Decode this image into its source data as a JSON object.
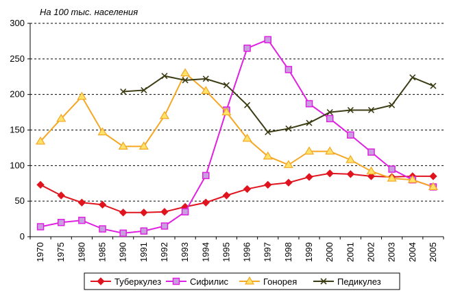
{
  "chart_data": {
    "type": "line",
    "title": "На 100 тыс. населения",
    "xlabel": "",
    "ylabel": "",
    "ylim": [
      0,
      300
    ],
    "yticks": [
      0,
      50,
      100,
      150,
      200,
      250,
      300
    ],
    "grid": "horizontal-dashed",
    "legend_position": "bottom",
    "categories": [
      "1970",
      "1975",
      "1980",
      "1985",
      "1990",
      "1991",
      "1992",
      "1993",
      "1994",
      "1995",
      "1996",
      "1997",
      "1998",
      "1999",
      "2000",
      "2001",
      "2002",
      "2003",
      "2004",
      "2005"
    ],
    "series": [
      {
        "name": "Туберкулез",
        "color": "#e0141e",
        "marker": "diamond",
        "values": [
          73,
          58,
          48,
          45,
          34,
          34,
          35,
          42,
          48,
          58,
          67,
          73,
          76,
          84,
          89,
          88,
          85,
          84,
          85,
          85
        ]
      },
      {
        "name": "Сифилис",
        "color": "#e020e0",
        "marker": "square",
        "values": [
          14,
          20,
          23,
          11,
          5,
          8,
          15,
          35,
          86,
          178,
          265,
          277,
          235,
          187,
          166,
          143,
          119,
          95,
          80,
          70
        ]
      },
      {
        "name": "Гонорея",
        "color": "#f5a623",
        "marker": "triangle",
        "values": [
          134,
          166,
          197,
          147,
          127,
          127,
          170,
          230,
          205,
          175,
          138,
          113,
          101,
          120,
          120,
          108,
          92,
          82,
          80,
          70
        ]
      },
      {
        "name": "Педикулез",
        "color": "#3c3c14",
        "marker": "x",
        "values": [
          null,
          null,
          null,
          null,
          204,
          206,
          226,
          220,
          222,
          213,
          185,
          147,
          152,
          160,
          175,
          178,
          178,
          185,
          224,
          212
        ]
      }
    ]
  }
}
